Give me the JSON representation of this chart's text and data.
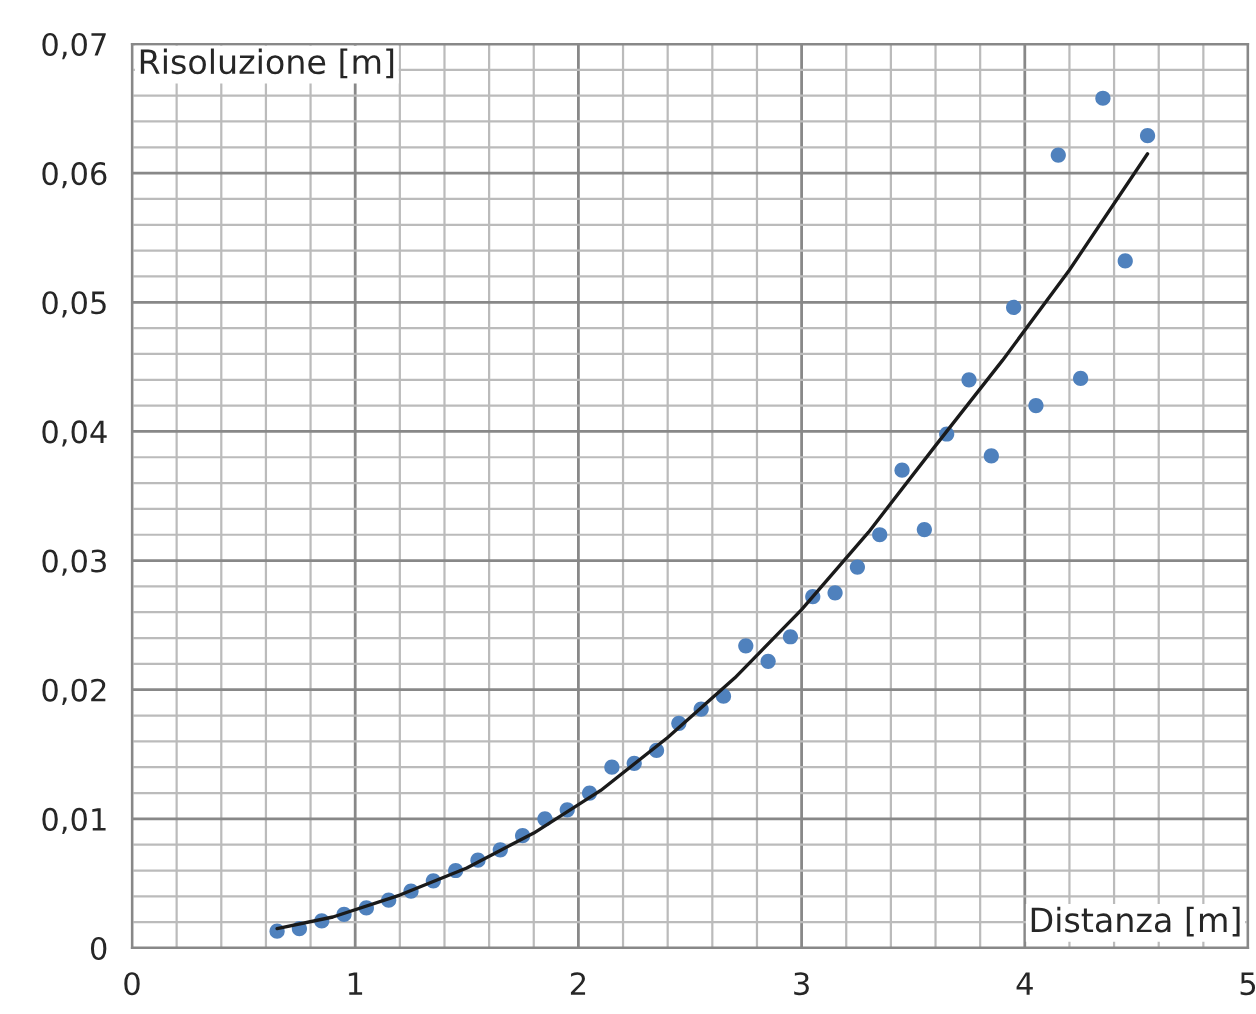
{
  "chart_data": {
    "type": "scatter",
    "xlabel": "Distanza [m]",
    "ylabel": "Risoluzione [m]",
    "series": [
      {
        "color": "#4f81bd",
        "marker": "circle",
        "x": [
          0.65,
          0.75,
          0.85,
          0.95,
          1.05,
          1.15,
          1.25,
          1.35,
          1.45,
          1.55,
          1.65,
          1.75,
          1.85,
          1.95,
          2.05,
          2.15,
          2.25,
          2.35,
          2.45,
          2.55,
          2.65,
          2.75,
          2.85,
          2.95,
          3.05,
          3.15,
          3.25,
          3.35,
          3.45,
          3.55,
          3.65,
          3.75,
          3.85,
          3.95,
          4.05,
          4.15,
          4.25,
          4.35,
          4.45,
          4.55
        ],
        "values": [
          0.0013,
          0.0015,
          0.0021,
          0.0026,
          0.0031,
          0.0037,
          0.0044,
          0.0052,
          0.006,
          0.0068,
          0.0076,
          0.0087,
          0.01,
          0.0107,
          0.012,
          0.014,
          0.0143,
          0.0153,
          0.0174,
          0.0185,
          0.0195,
          0.0234,
          0.0222,
          0.0241,
          0.0272,
          0.0275,
          0.0295,
          0.032,
          0.037,
          0.0324,
          0.0398,
          0.044,
          0.0381,
          0.0496,
          0.042,
          0.0614,
          0.0441,
          0.0658,
          0.0532,
          0.0629
        ]
      },
      {
        "type": "line",
        "color": "#1a1a1a",
        "marker": "none",
        "line_style": "solid",
        "x": [
          0.65,
          0.9,
          1.2,
          1.5,
          1.8,
          2.1,
          2.4,
          2.7,
          3.0,
          3.3,
          3.6,
          3.9,
          4.2,
          4.55
        ],
        "values": [
          0.0015,
          0.0024,
          0.0041,
          0.0062,
          0.0089,
          0.0122,
          0.0163,
          0.0209,
          0.0262,
          0.0322,
          0.0389,
          0.0455,
          0.0525,
          0.0615
        ]
      }
    ],
    "xlim": [
      0,
      5
    ],
    "xticks": [
      0,
      1,
      2,
      3,
      4,
      5
    ],
    "ylim": [
      0,
      0.07
    ],
    "yticks": [
      0,
      {
        "value": 0.01,
        "label": "0,01"
      },
      {
        "value": 0.02,
        "label": "0,02"
      },
      {
        "value": 0.03,
        "label": "0,03"
      },
      {
        "value": 0.04,
        "label": "0,04"
      },
      {
        "value": 0.05,
        "label": "0,05"
      },
      {
        "value": 0.06,
        "label": "0,06"
      },
      {
        "value": 0.07,
        "label": "0,07"
      }
    ],
    "grid": true,
    "legend": false
  }
}
